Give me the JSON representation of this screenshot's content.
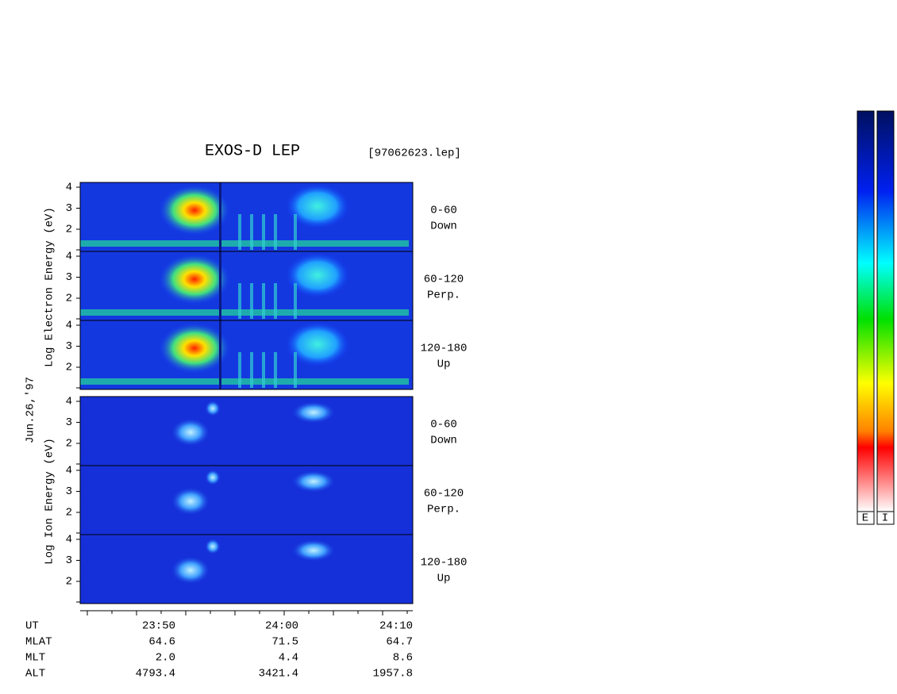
{
  "header": {
    "title": "EXOS-D LEP",
    "file": "[97062623.lep]"
  },
  "date": "Jun.26,'97",
  "axis_labels": {
    "electron": "Log Electron Energy (eV)",
    "ion": "Log Ion Energy (eV)"
  },
  "panels": [
    {
      "ticks": [
        2,
        3,
        4
      ],
      "angle": "0-60",
      "direction": "Down"
    },
    {
      "ticks": [
        2,
        3,
        4
      ],
      "angle": "60-120",
      "direction": "Perp."
    },
    {
      "ticks": [
        2,
        3,
        4
      ],
      "angle": "120-180",
      "direction": "Up"
    },
    {
      "ticks": [
        2,
        3,
        4
      ],
      "angle": "0-60",
      "direction": "Down"
    },
    {
      "ticks": [
        2,
        3,
        4
      ],
      "angle": "60-120",
      "direction": "Perp."
    },
    {
      "ticks": [
        2,
        3,
        4
      ],
      "angle": "120-180",
      "direction": "Up"
    }
  ],
  "footer": {
    "rows": [
      [
        "UT",
        "23:50",
        "24:00",
        "24:10"
      ],
      [
        "MLAT",
        "64.6",
        "71.5",
        "64.7"
      ],
      [
        "MLT",
        "2.0",
        "4.4",
        "8.6"
      ],
      [
        "ALT",
        "4793.4",
        "3421.4",
        "1957.8"
      ]
    ]
  },
  "colorbar_labels": [
    "E",
    "I"
  ]
}
